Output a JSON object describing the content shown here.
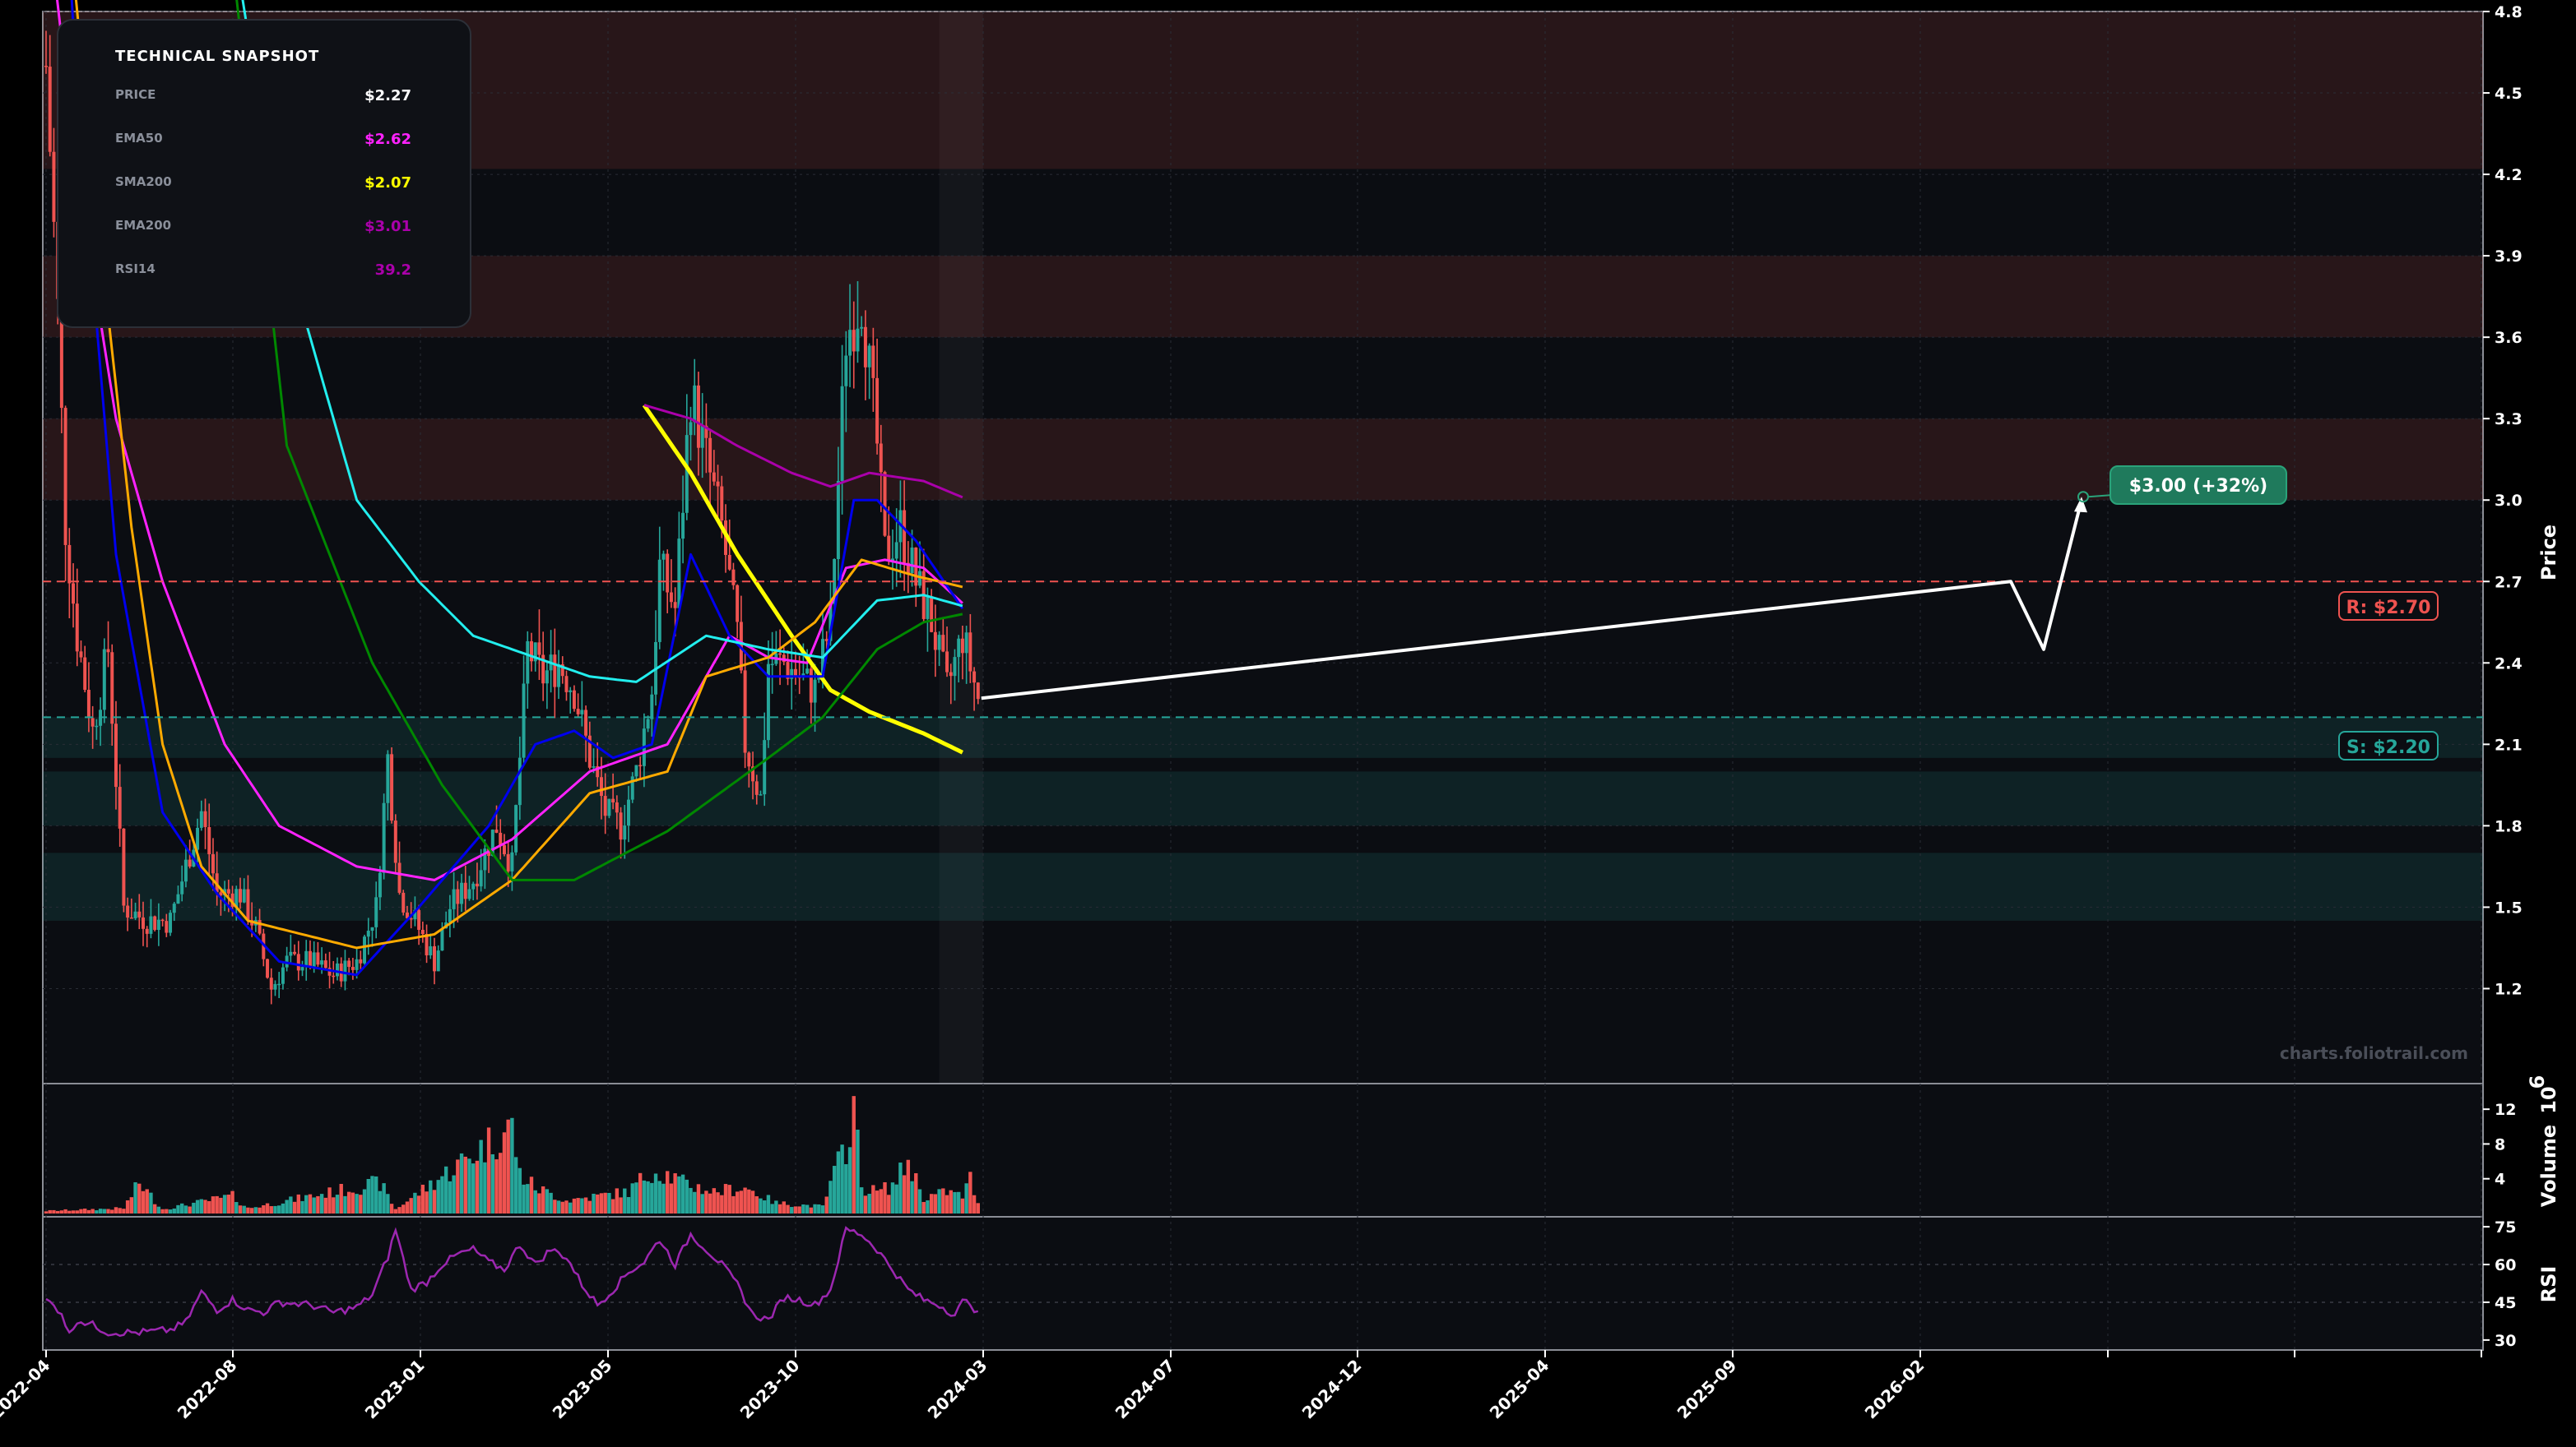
{
  "colors": {
    "background": "#000000",
    "panel": "#0b0d12",
    "grid": "#2a2d36",
    "bull": "#26a69a",
    "bear": "#ef5350",
    "ema50": "#ff22ff",
    "sma200": "#ffff00",
    "ema200": "#aa00aa",
    "blue_ma": "#0000ee",
    "cyan_ma": "#22eeee",
    "orange_ma": "#ffaa00",
    "green_ma": "#008800",
    "resistance": "#ef5350",
    "support": "#26a69a",
    "target": "#1f7a5c",
    "rsi": "#9c27b0"
  },
  "snapshot": {
    "title": "TECHNICAL SNAPSHOT",
    "rows": [
      {
        "label": "PRICE",
        "value": "$2.27",
        "color": "#ffffff"
      },
      {
        "label": "EMA50",
        "value": "$2.62",
        "color": "#ff22ff"
      },
      {
        "label": "SMA200",
        "value": "$2.07",
        "color": "#ffff00"
      },
      {
        "label": "EMA200",
        "value": "$3.01",
        "color": "#aa00aa"
      },
      {
        "label": "RSI14",
        "value": "39.2",
        "color": "#aa00aa"
      }
    ]
  },
  "watermark": "charts.foliotrail.com",
  "levels": {
    "resistance": {
      "label": "R: $2.70",
      "value": 2.7
    },
    "support": {
      "label": "S: $2.20",
      "value": 2.2
    }
  },
  "target": {
    "label": "$3.00 (+32%)",
    "value": 3.0
  },
  "chart_data": {
    "type": "candlestick",
    "price_axis": {
      "title": "Price",
      "ylim": [
        0.85,
        4.8
      ],
      "ticks": [
        4.8,
        4.5,
        4.2,
        3.9,
        3.6,
        3.3,
        3.0,
        2.7,
        2.4,
        2.1,
        1.8,
        1.5,
        1.2
      ]
    },
    "volume_axis": {
      "title": "Volume",
      "exponent_label": "10",
      "exponent": "6",
      "ylim": [
        0,
        14
      ],
      "ticks": [
        12,
        8,
        4
      ]
    },
    "rsi_axis": {
      "title": "RSI",
      "ylim": [
        28,
        77
      ],
      "ticks": [
        75,
        60,
        45,
        30
      ]
    },
    "x_ticks": [
      "2022-04",
      "2022-08",
      "2023-01",
      "2023-05",
      "2023-10",
      "2024-03",
      "2024-07",
      "2024-12",
      "2025-04",
      "2025-09",
      "2026-02"
    ],
    "zones": [
      {
        "from": 4.22,
        "to": 4.8,
        "kind": "resistance"
      },
      {
        "from": 3.6,
        "to": 3.9,
        "kind": "resistance"
      },
      {
        "from": 3.0,
        "to": 3.3,
        "kind": "resistance"
      },
      {
        "from": 2.05,
        "to": 2.2,
        "kind": "support"
      },
      {
        "from": 1.8,
        "to": 2.0,
        "kind": "support"
      },
      {
        "from": 1.45,
        "to": 1.7,
        "kind": "support"
      }
    ],
    "price_anchors": [
      [
        0,
        4.6
      ],
      [
        3,
        3.7
      ],
      [
        5,
        2.9
      ],
      [
        8,
        2.5
      ],
      [
        12,
        2.15
      ],
      [
        16,
        2.45
      ],
      [
        20,
        1.5
      ],
      [
        26,
        1.45
      ],
      [
        32,
        1.45
      ],
      [
        36,
        1.65
      ],
      [
        40,
        1.85
      ],
      [
        44,
        1.55
      ],
      [
        50,
        1.55
      ],
      [
        54,
        1.42
      ],
      [
        58,
        1.2
      ],
      [
        62,
        1.3
      ],
      [
        68,
        1.3
      ],
      [
        74,
        1.25
      ],
      [
        80,
        1.3
      ],
      [
        85,
        1.5
      ],
      [
        88,
        2.05
      ],
      [
        91,
        1.55
      ],
      [
        95,
        1.45
      ],
      [
        100,
        1.3
      ],
      [
        104,
        1.5
      ],
      [
        110,
        1.6
      ],
      [
        116,
        1.8
      ],
      [
        120,
        1.65
      ],
      [
        124,
        2.45
      ],
      [
        128,
        2.35
      ],
      [
        132,
        2.4
      ],
      [
        136,
        2.3
      ],
      [
        140,
        2.05
      ],
      [
        144,
        1.85
      ],
      [
        148,
        1.8
      ],
      [
        152,
        2.0
      ],
      [
        156,
        2.3
      ],
      [
        158,
        2.75
      ],
      [
        162,
        2.6
      ],
      [
        166,
        3.4
      ],
      [
        170,
        3.15
      ],
      [
        174,
        2.9
      ],
      [
        178,
        2.5
      ],
      [
        180,
        2.1
      ],
      [
        184,
        1.9
      ],
      [
        186,
        2.4
      ],
      [
        190,
        2.4
      ],
      [
        194,
        2.35
      ],
      [
        198,
        2.3
      ],
      [
        202,
        2.55
      ],
      [
        206,
        3.6
      ],
      [
        210,
        3.75
      ],
      [
        214,
        3.2
      ],
      [
        216,
        2.8
      ],
      [
        220,
        2.9
      ],
      [
        224,
        2.7
      ],
      [
        228,
        2.55
      ],
      [
        232,
        2.3
      ],
      [
        236,
        2.5
      ],
      [
        240,
        2.27
      ]
    ],
    "volume_anchors": [
      [
        0,
        0.3
      ],
      [
        20,
        0.6
      ],
      [
        24,
        3.5
      ],
      [
        30,
        0.5
      ],
      [
        48,
        2.0
      ],
      [
        52,
        0.6
      ],
      [
        86,
        3.5
      ],
      [
        90,
        0.5
      ],
      [
        120,
        10.0
      ],
      [
        122,
        4.5
      ],
      [
        126,
        3.0
      ],
      [
        134,
        1.5
      ],
      [
        150,
        2.5
      ],
      [
        156,
        5.0
      ],
      [
        160,
        4.5
      ],
      [
        164,
        3.5
      ],
      [
        172,
        2.5
      ],
      [
        180,
        3.0
      ],
      [
        188,
        1.2
      ],
      [
        200,
        0.8
      ],
      [
        203,
        4.5
      ],
      [
        206,
        8.0
      ],
      [
        208,
        12.5
      ],
      [
        210,
        3.0
      ],
      [
        214,
        2.5
      ],
      [
        218,
        3.2
      ],
      [
        222,
        6.0
      ],
      [
        226,
        1.8
      ],
      [
        232,
        2.5
      ],
      [
        236,
        2.0
      ],
      [
        238,
        4.0
      ],
      [
        240,
        1.0
      ]
    ],
    "rsi_anchors": [
      [
        0,
        46
      ],
      [
        4,
        41
      ],
      [
        6,
        32
      ],
      [
        8,
        38
      ],
      [
        12,
        36
      ],
      [
        16,
        33
      ],
      [
        24,
        33
      ],
      [
        32,
        34
      ],
      [
        36,
        37
      ],
      [
        40,
        49
      ],
      [
        44,
        42
      ],
      [
        48,
        46
      ],
      [
        52,
        42
      ],
      [
        56,
        41
      ],
      [
        60,
        45
      ],
      [
        68,
        44
      ],
      [
        74,
        41
      ],
      [
        80,
        43
      ],
      [
        84,
        48
      ],
      [
        88,
        63
      ],
      [
        90,
        74
      ],
      [
        94,
        50
      ],
      [
        98,
        53
      ],
      [
        102,
        60
      ],
      [
        106,
        64
      ],
      [
        110,
        66
      ],
      [
        114,
        61
      ],
      [
        118,
        58
      ],
      [
        122,
        68
      ],
      [
        126,
        60
      ],
      [
        130,
        66
      ],
      [
        134,
        63
      ],
      [
        138,
        52
      ],
      [
        142,
        44
      ],
      [
        146,
        50
      ],
      [
        150,
        57
      ],
      [
        154,
        61
      ],
      [
        158,
        70
      ],
      [
        162,
        60
      ],
      [
        166,
        72
      ],
      [
        170,
        66
      ],
      [
        174,
        60
      ],
      [
        178,
        52
      ],
      [
        182,
        40
      ],
      [
        186,
        38
      ],
      [
        190,
        47
      ],
      [
        194,
        46
      ],
      [
        198,
        44
      ],
      [
        202,
        50
      ],
      [
        206,
        74
      ],
      [
        210,
        72
      ],
      [
        214,
        66
      ],
      [
        218,
        58
      ],
      [
        222,
        50
      ],
      [
        226,
        46
      ],
      [
        230,
        44
      ],
      [
        234,
        40
      ],
      [
        236,
        45
      ],
      [
        238,
        45
      ],
      [
        240,
        40
      ]
    ],
    "series": [
      {
        "name": "EMA50",
        "color": "#ff22ff",
        "points": [
          [
            0,
            5.2
          ],
          [
            8,
            4.2
          ],
          [
            18,
            3.3
          ],
          [
            30,
            2.7
          ],
          [
            46,
            2.1
          ],
          [
            60,
            1.8
          ],
          [
            80,
            1.65
          ],
          [
            100,
            1.6
          ],
          [
            120,
            1.75
          ],
          [
            140,
            2.0
          ],
          [
            160,
            2.1
          ],
          [
            176,
            2.5
          ],
          [
            186,
            2.42
          ],
          [
            196,
            2.4
          ],
          [
            206,
            2.75
          ],
          [
            216,
            2.78
          ],
          [
            226,
            2.75
          ],
          [
            236,
            2.62
          ]
        ]
      },
      {
        "name": "SMA200",
        "color": "#ffff00",
        "points": [
          [
            154,
            3.35
          ],
          [
            166,
            3.1
          ],
          [
            178,
            2.8
          ],
          [
            192,
            2.5
          ],
          [
            202,
            2.3
          ],
          [
            212,
            2.22
          ],
          [
            226,
            2.14
          ],
          [
            236,
            2.07
          ]
        ]
      },
      {
        "name": "EMA200",
        "color": "#aa00aa",
        "points": [
          [
            154,
            3.35
          ],
          [
            166,
            3.3
          ],
          [
            178,
            3.2
          ],
          [
            192,
            3.1
          ],
          [
            202,
            3.05
          ],
          [
            212,
            3.1
          ],
          [
            226,
            3.07
          ],
          [
            236,
            3.01
          ]
        ]
      },
      {
        "name": "",
        "color": "#0000ee",
        "points": [
          [
            0,
            6.5
          ],
          [
            8,
            4.5
          ],
          [
            18,
            2.8
          ],
          [
            30,
            1.85
          ],
          [
            44,
            1.55
          ],
          [
            60,
            1.3
          ],
          [
            80,
            1.25
          ],
          [
            96,
            1.5
          ],
          [
            114,
            1.8
          ],
          [
            126,
            2.1
          ],
          [
            136,
            2.15
          ],
          [
            146,
            2.05
          ],
          [
            156,
            2.1
          ],
          [
            166,
            2.8
          ],
          [
            176,
            2.5
          ],
          [
            186,
            2.35
          ],
          [
            200,
            2.35
          ],
          [
            208,
            3.0
          ],
          [
            214,
            3.0
          ],
          [
            224,
            2.85
          ],
          [
            236,
            2.6
          ]
        ]
      },
      {
        "name": "",
        "color": "#ffaa00",
        "points": [
          [
            0,
            6.0
          ],
          [
            12,
            4.2
          ],
          [
            22,
            2.9
          ],
          [
            30,
            2.1
          ],
          [
            40,
            1.65
          ],
          [
            52,
            1.45
          ],
          [
            80,
            1.35
          ],
          [
            100,
            1.4
          ],
          [
            120,
            1.6
          ],
          [
            140,
            1.92
          ],
          [
            160,
            2.0
          ],
          [
            170,
            2.35
          ],
          [
            186,
            2.42
          ],
          [
            198,
            2.55
          ],
          [
            210,
            2.78
          ],
          [
            224,
            2.72
          ],
          [
            236,
            2.68
          ]
        ]
      },
      {
        "name": "",
        "color": "#22eeee",
        "points": [
          [
            40,
            5.8
          ],
          [
            60,
            4.0
          ],
          [
            80,
            3.0
          ],
          [
            96,
            2.7
          ],
          [
            110,
            2.5
          ],
          [
            126,
            2.42
          ],
          [
            140,
            2.35
          ],
          [
            152,
            2.33
          ],
          [
            170,
            2.5
          ],
          [
            186,
            2.45
          ],
          [
            200,
            2.42
          ],
          [
            214,
            2.63
          ],
          [
            226,
            2.65
          ],
          [
            236,
            2.61
          ]
        ]
      },
      {
        "name": "",
        "color": "#008800",
        "points": [
          [
            40,
            6.0
          ],
          [
            62,
            3.2
          ],
          [
            84,
            2.4
          ],
          [
            102,
            1.95
          ],
          [
            120,
            1.6
          ],
          [
            136,
            1.6
          ],
          [
            160,
            1.78
          ],
          [
            186,
            2.05
          ],
          [
            200,
            2.2
          ],
          [
            214,
            2.45
          ],
          [
            226,
            2.55
          ],
          [
            236,
            2.58
          ]
        ]
      }
    ]
  }
}
